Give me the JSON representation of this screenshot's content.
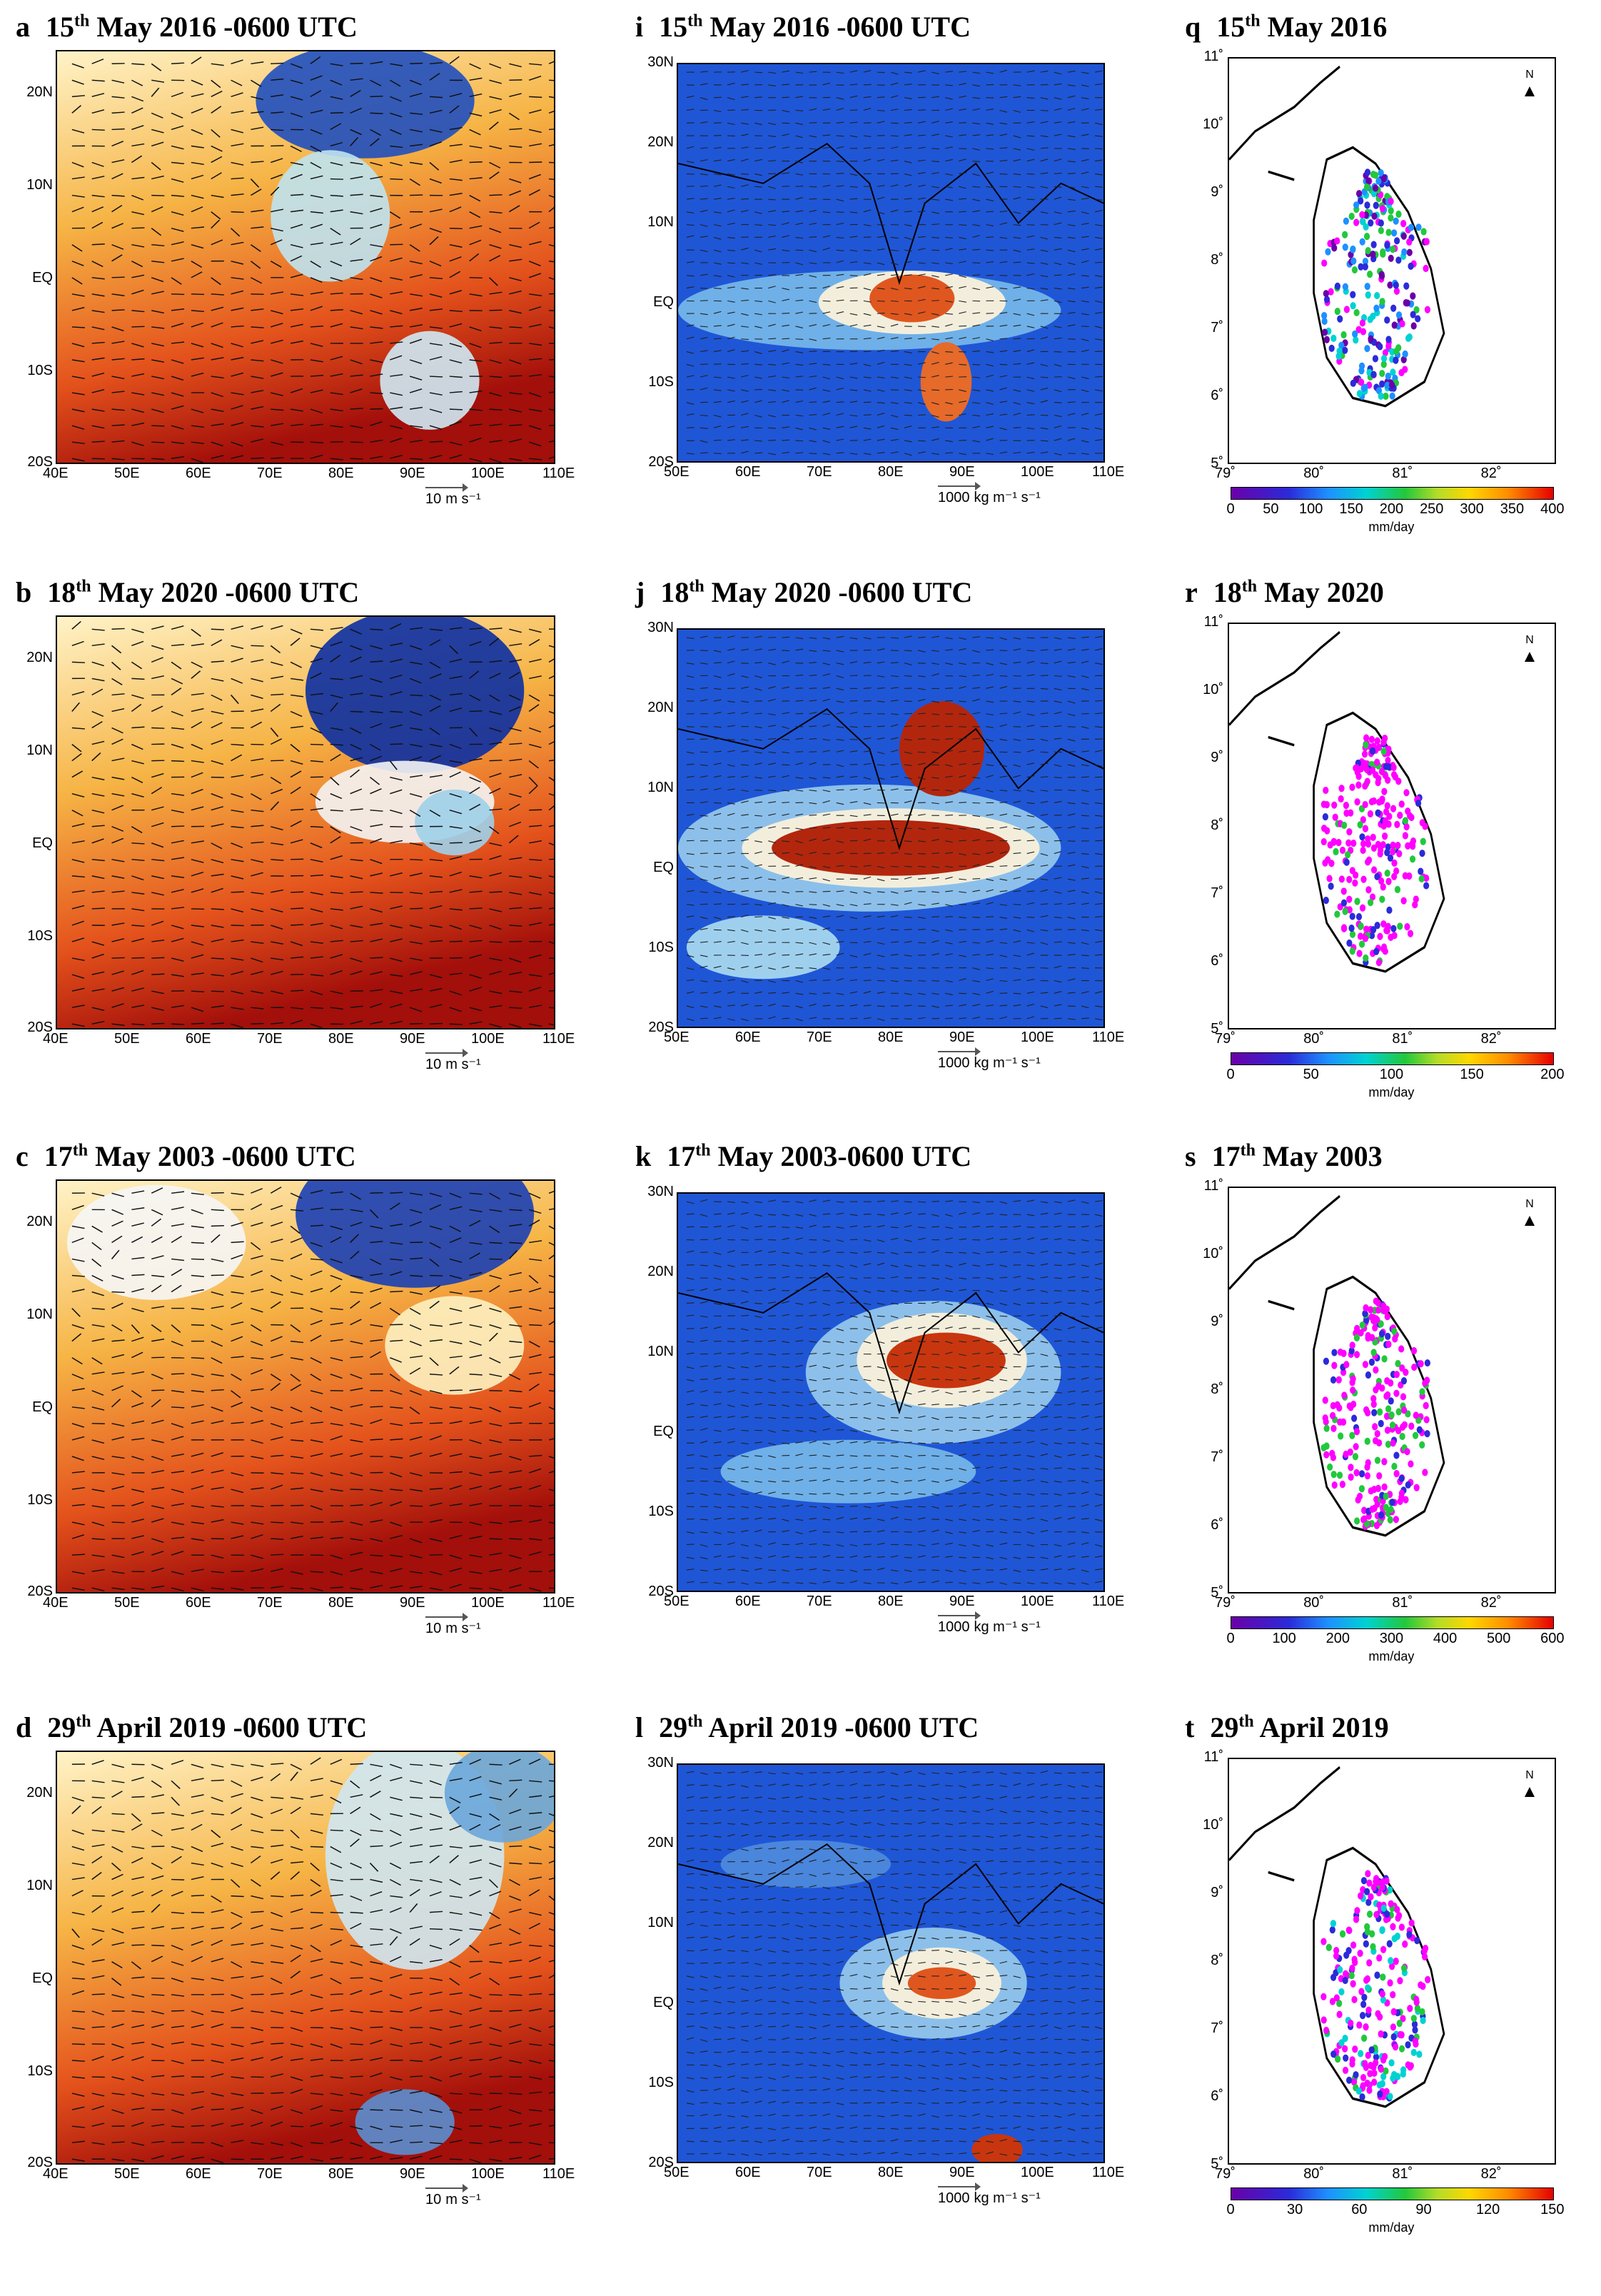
{
  "rows": [
    {
      "wind": {
        "letter": "a",
        "day": "15",
        "sup": "th",
        "rest": " May 2016 -0600 UTC",
        "scale_value": "10",
        "unit": "m s⁻¹",
        "xticks": [
          "40E",
          "50E",
          "60E",
          "70E",
          "80E",
          "90E",
          "100E",
          "110E"
        ],
        "yticks": [
          "20N",
          "10N",
          "EQ",
          "10S",
          "20S"
        ]
      },
      "flux": {
        "letter": "i",
        "day": "15",
        "sup": "th",
        "rest": " May 2016 -0600 UTC",
        "scale_value": "1000",
        "unit": "kg m⁻¹ s⁻¹",
        "xticks": [
          "50E",
          "60E",
          "70E",
          "80E",
          "90E",
          "100E",
          "110E"
        ],
        "yticks": [
          "30N",
          "20N",
          "10N",
          "EQ",
          "10S",
          "20S"
        ]
      },
      "rain": {
        "letter": "q",
        "day": "15",
        "sup": "th",
        "rest": " May 2016",
        "lon_ticks": [
          "79˚",
          "80˚",
          "81˚",
          "82˚"
        ],
        "lat_ticks": [
          "11˚",
          "10˚",
          "9˚",
          "8˚",
          "7˚",
          "6˚",
          "5˚"
        ],
        "colorbar": [
          "0",
          "50",
          "100",
          "150",
          "200",
          "250",
          "300",
          "350",
          "400"
        ],
        "unit": "mm/day",
        "north": "N"
      }
    },
    {
      "wind": {
        "letter": "b",
        "day": "18",
        "sup": "th",
        "rest": " May 2020 -0600 UTC",
        "scale_value": "10",
        "unit": "m s⁻¹",
        "xticks": [
          "40E",
          "50E",
          "60E",
          "70E",
          "80E",
          "90E",
          "100E",
          "110E"
        ],
        "yticks": [
          "20N",
          "10N",
          "EQ",
          "10S",
          "20S"
        ]
      },
      "flux": {
        "letter": "j",
        "day": "18",
        "sup": "th",
        "rest": " May 2020 -0600 UTC",
        "scale_value": "1000",
        "unit": "kg m⁻¹ s⁻¹",
        "xticks": [
          "50E",
          "60E",
          "70E",
          "80E",
          "90E",
          "100E",
          "110E"
        ],
        "yticks": [
          "30N",
          "20N",
          "10N",
          "EQ",
          "10S",
          "20S"
        ]
      },
      "rain": {
        "letter": "r",
        "day": "18",
        "sup": "th",
        "rest": " May 2020",
        "lon_ticks": [
          "79˚",
          "80˚",
          "81˚",
          "82˚"
        ],
        "lat_ticks": [
          "11˚",
          "10˚",
          "9˚",
          "8˚",
          "7˚",
          "6˚",
          "5˚"
        ],
        "colorbar": [
          "0",
          "50",
          "100",
          "150",
          "200"
        ],
        "unit": "mm/day",
        "north": "N"
      }
    },
    {
      "wind": {
        "letter": "c",
        "day": "17",
        "sup": "th",
        "rest": " May 2003 -0600 UTC",
        "scale_value": "10",
        "unit": "m s⁻¹",
        "xticks": [
          "40E",
          "50E",
          "60E",
          "70E",
          "80E",
          "90E",
          "100E",
          "110E"
        ],
        "yticks": [
          "20N",
          "10N",
          "EQ",
          "10S",
          "20S"
        ]
      },
      "flux": {
        "letter": "k",
        "day": "17",
        "sup": "th",
        "rest": " May 2003-0600 UTC",
        "scale_value": "1000",
        "unit": "kg m⁻¹ s⁻¹",
        "xticks": [
          "50E",
          "60E",
          "70E",
          "80E",
          "90E",
          "100E",
          "110E"
        ],
        "yticks": [
          "30N",
          "20N",
          "10N",
          "EQ",
          "10S",
          "20S"
        ]
      },
      "rain": {
        "letter": "s",
        "day": "17",
        "sup": "th",
        "rest": " May 2003",
        "lon_ticks": [
          "79˚",
          "80˚",
          "81˚",
          "82˚"
        ],
        "lat_ticks": [
          "11˚",
          "10˚",
          "9˚",
          "8˚",
          "7˚",
          "6˚",
          "5˚"
        ],
        "colorbar": [
          "0",
          "100",
          "200",
          "300",
          "400",
          "500",
          "600"
        ],
        "unit": "mm/day",
        "north": "N"
      }
    },
    {
      "wind": {
        "letter": "d",
        "day": "29",
        "sup": "th",
        "rest": " April 2019 -0600 UTC",
        "scale_value": "10",
        "unit": "m s⁻¹",
        "xticks": [
          "40E",
          "50E",
          "60E",
          "70E",
          "80E",
          "90E",
          "100E",
          "110E"
        ],
        "yticks": [
          "20N",
          "10N",
          "EQ",
          "10S",
          "20S"
        ]
      },
      "flux": {
        "letter": "l",
        "day": "29",
        "sup": "th",
        "rest": " April 2019 -0600 UTC",
        "scale_value": "1000",
        "unit": "kg m⁻¹ s⁻¹",
        "xticks": [
          "50E",
          "60E",
          "70E",
          "80E",
          "90E",
          "100E",
          "110E"
        ],
        "yticks": [
          "30N",
          "20N",
          "10N",
          "EQ",
          "10S",
          "20S"
        ]
      },
      "rain": {
        "letter": "t",
        "day": "29",
        "sup": "th",
        "rest": " April 2019",
        "lon_ticks": [
          "79˚",
          "80˚",
          "81˚",
          "82˚"
        ],
        "lat_ticks": [
          "11˚",
          "10˚",
          "9˚",
          "8˚",
          "7˚",
          "6˚",
          "5˚"
        ],
        "colorbar": [
          "0",
          "30",
          "60",
          "90",
          "120",
          "150"
        ],
        "unit": "mm/day",
        "north": "N"
      }
    }
  ]
}
